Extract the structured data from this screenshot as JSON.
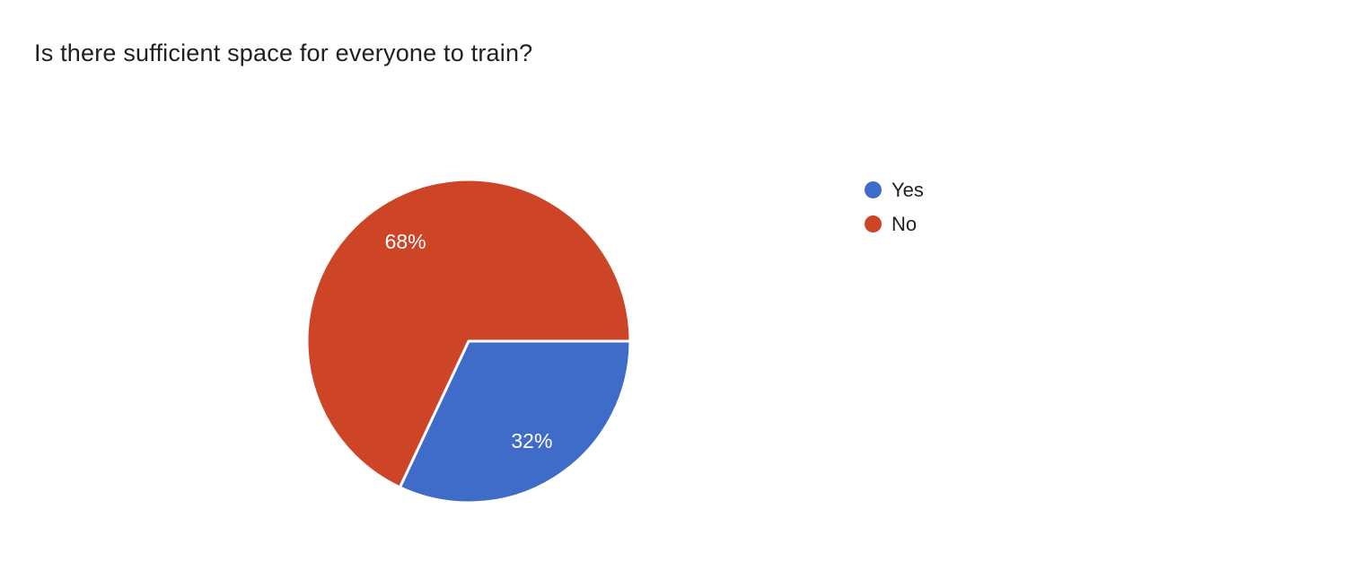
{
  "page": {
    "background": "#ffffff",
    "title": "Is there sufficient space for everyone to train?",
    "title_color": "#202124"
  },
  "chart_data": {
    "type": "pie",
    "title": "Is there sufficient space for everyone to train?",
    "categories": [
      "Yes",
      "No"
    ],
    "values": [
      32,
      68
    ],
    "unit": "%",
    "slices": [
      {
        "label": "Yes",
        "value": 32,
        "display": "32%",
        "color": "#3e6cc8"
      },
      {
        "label": "No",
        "value": 68,
        "display": "68%",
        "color": "#cd4526"
      }
    ],
    "start_angle_deg": 0,
    "direction": "clockwise",
    "legend_position": "right",
    "label_color": "#ffffff",
    "label_font_size": 23,
    "slice_border_color": "#ffffff"
  }
}
